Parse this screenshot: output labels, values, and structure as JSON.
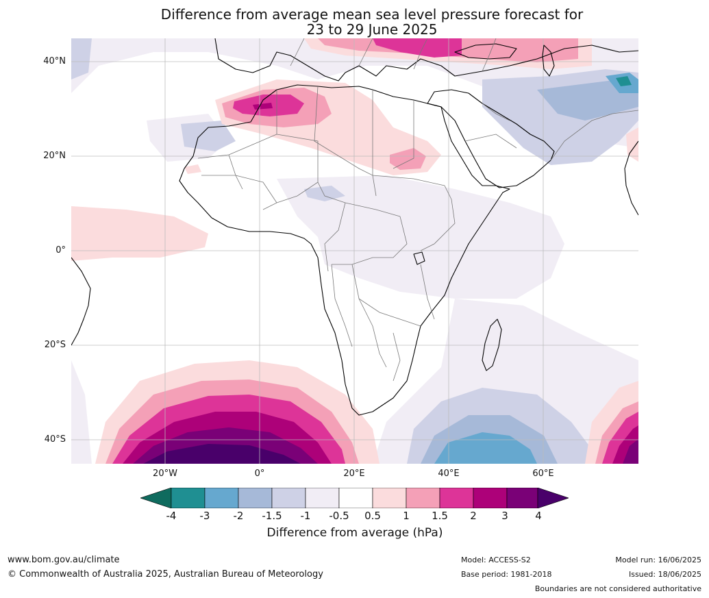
{
  "title": {
    "line1": "Difference from average mean sea level pressure forecast for",
    "line2": "23 to 29 June 2025"
  },
  "map": {
    "lat_labels": [
      "40°N",
      "20°N",
      "0°",
      "20°S",
      "40°S"
    ],
    "lon_labels": [
      "20°W",
      "0°",
      "20°E",
      "40°E",
      "60°E"
    ],
    "colors": {
      "n4": "#0f6b5e",
      "n3": "#1f8f92",
      "n2": "#66a8cf",
      "n15": "#a6b9d8",
      "n1": "#ced1e6",
      "n05": "#f1edf5",
      "p05": "#fbdcdd",
      "p1": "#f4a0b7",
      "p15": "#dd3498",
      "p2": "#ad0179",
      "p3": "#7a0177",
      "p4": "#49006a"
    }
  },
  "colorbar": {
    "ticks": [
      "-4",
      "-3",
      "-2",
      "-1.5",
      "-1",
      "-0.5",
      "0.5",
      "1",
      "1.5",
      "2",
      "3",
      "4"
    ],
    "label": "Difference from average (hPa)"
  },
  "footer": {
    "website": "www.bom.gov.au/climate",
    "copyright": "© Commonwealth of Australia 2025, Australian Bureau of Meteorology",
    "model": "Model: ACCESS-S2",
    "base_period": "Base period: 1981-2018",
    "model_run": "Model run: 16/06/2025",
    "issued": "Issued: 18/06/2025",
    "boundaries": "Boundaries are not considered authoritative"
  }
}
